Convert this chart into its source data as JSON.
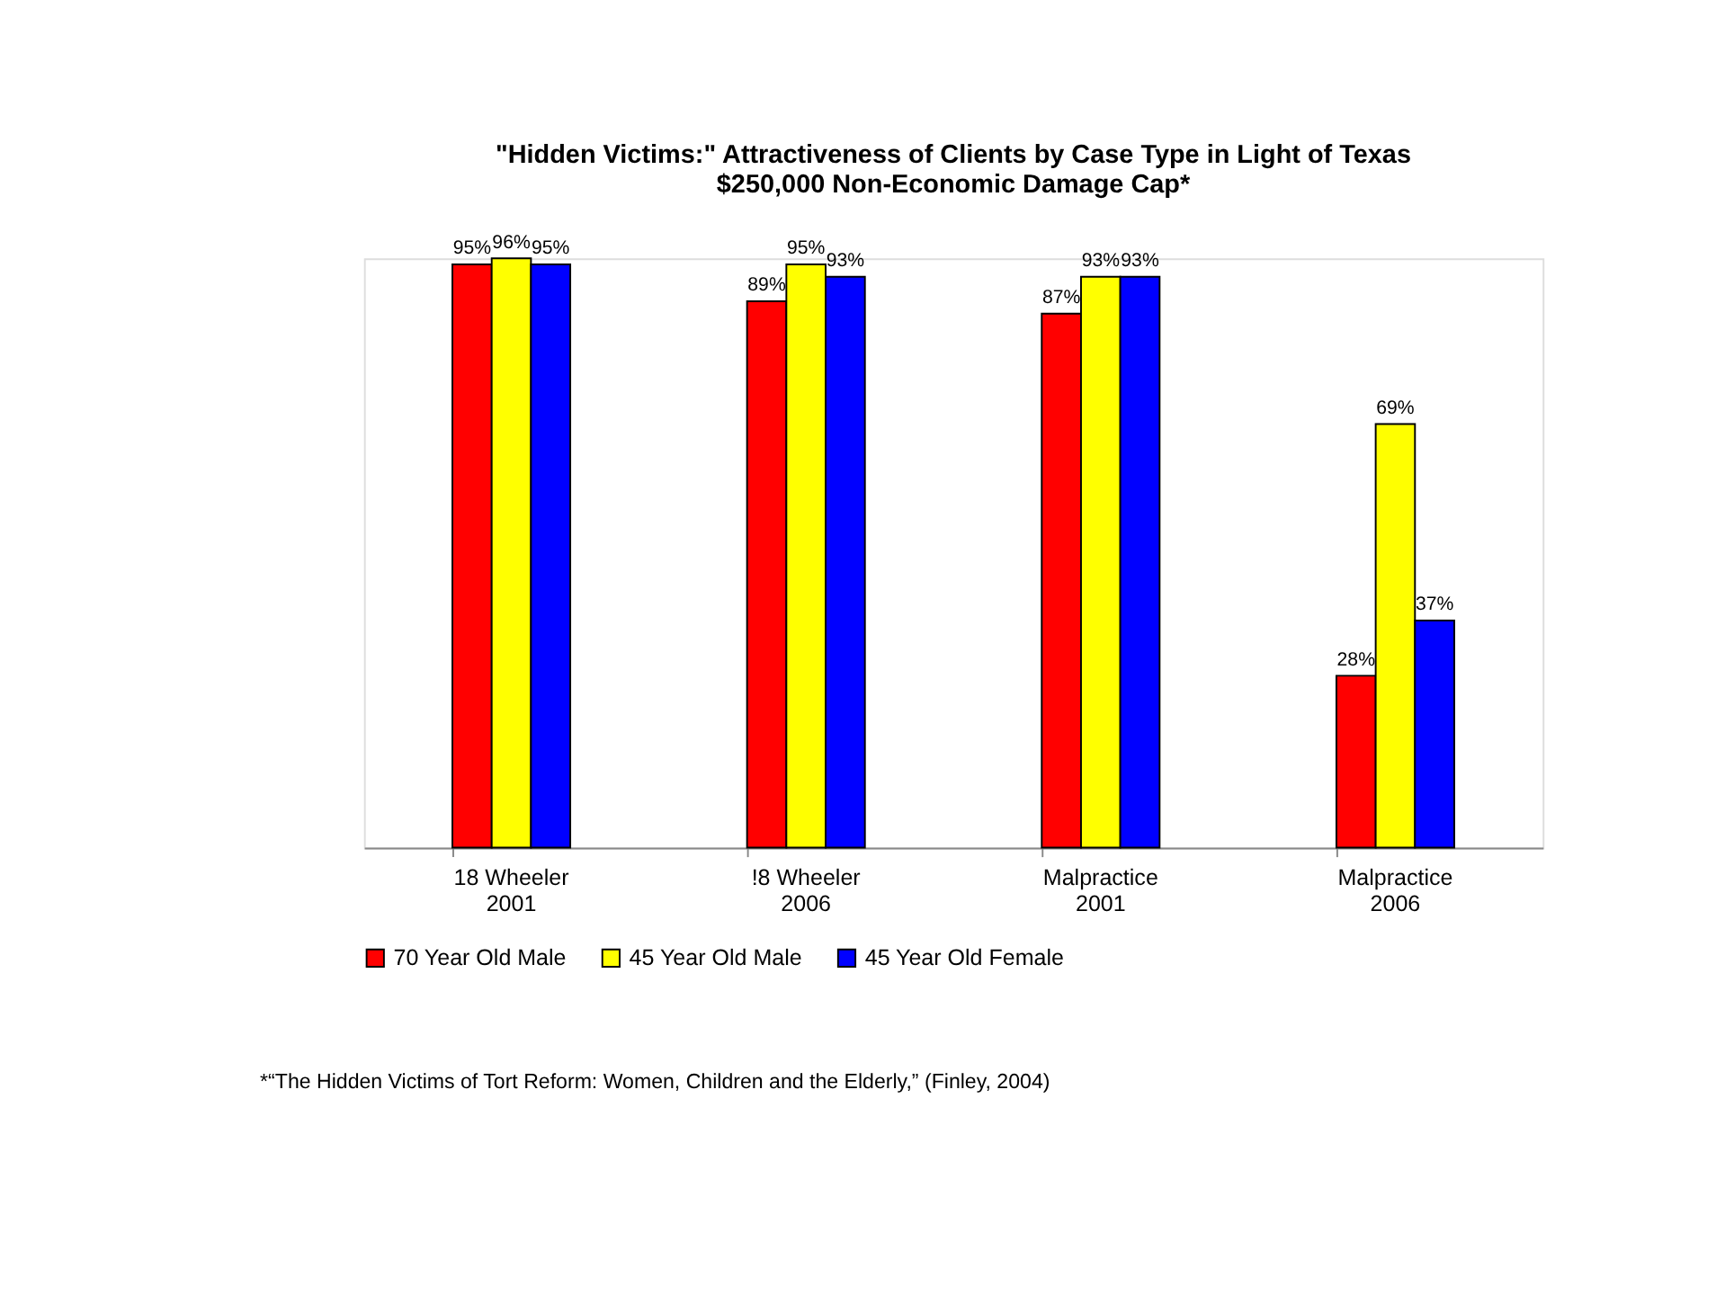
{
  "chart_data": {
    "type": "bar",
    "title": "\"Hidden Victims:\" Attractiveness of Clients by Case Type in Light of Texas\n$250,000 Non-Economic Damage Cap*",
    "categories": [
      "18 Wheeler\n2001",
      "!8 Wheeler\n2006",
      "Malpractice\n2001",
      "Malpractice\n2006"
    ],
    "series": [
      {
        "name": "70 Year Old Male",
        "color": "#ff0000",
        "values": [
          95,
          89,
          87,
          28
        ],
        "value_labels": [
          "95%",
          "89%",
          "87%",
          "28%"
        ]
      },
      {
        "name": "45 Year Old Male",
        "color": "#ffff00",
        "values": [
          96,
          95,
          93,
          69
        ],
        "value_labels": [
          "96%",
          "95%",
          "93%",
          "69%"
        ]
      },
      {
        "name": "45 Year Old Female",
        "color": "#0000ff",
        "values": [
          95,
          93,
          93,
          37
        ],
        "value_labels": [
          "95%",
          "93%",
          "93%",
          "37%"
        ]
      }
    ],
    "legend": "bottom",
    "grid": false,
    "annotations": [
      "*“The Hidden Victims of Tort Reform: Women, Children and the Elderly,” (Finley, 2004)"
    ]
  }
}
